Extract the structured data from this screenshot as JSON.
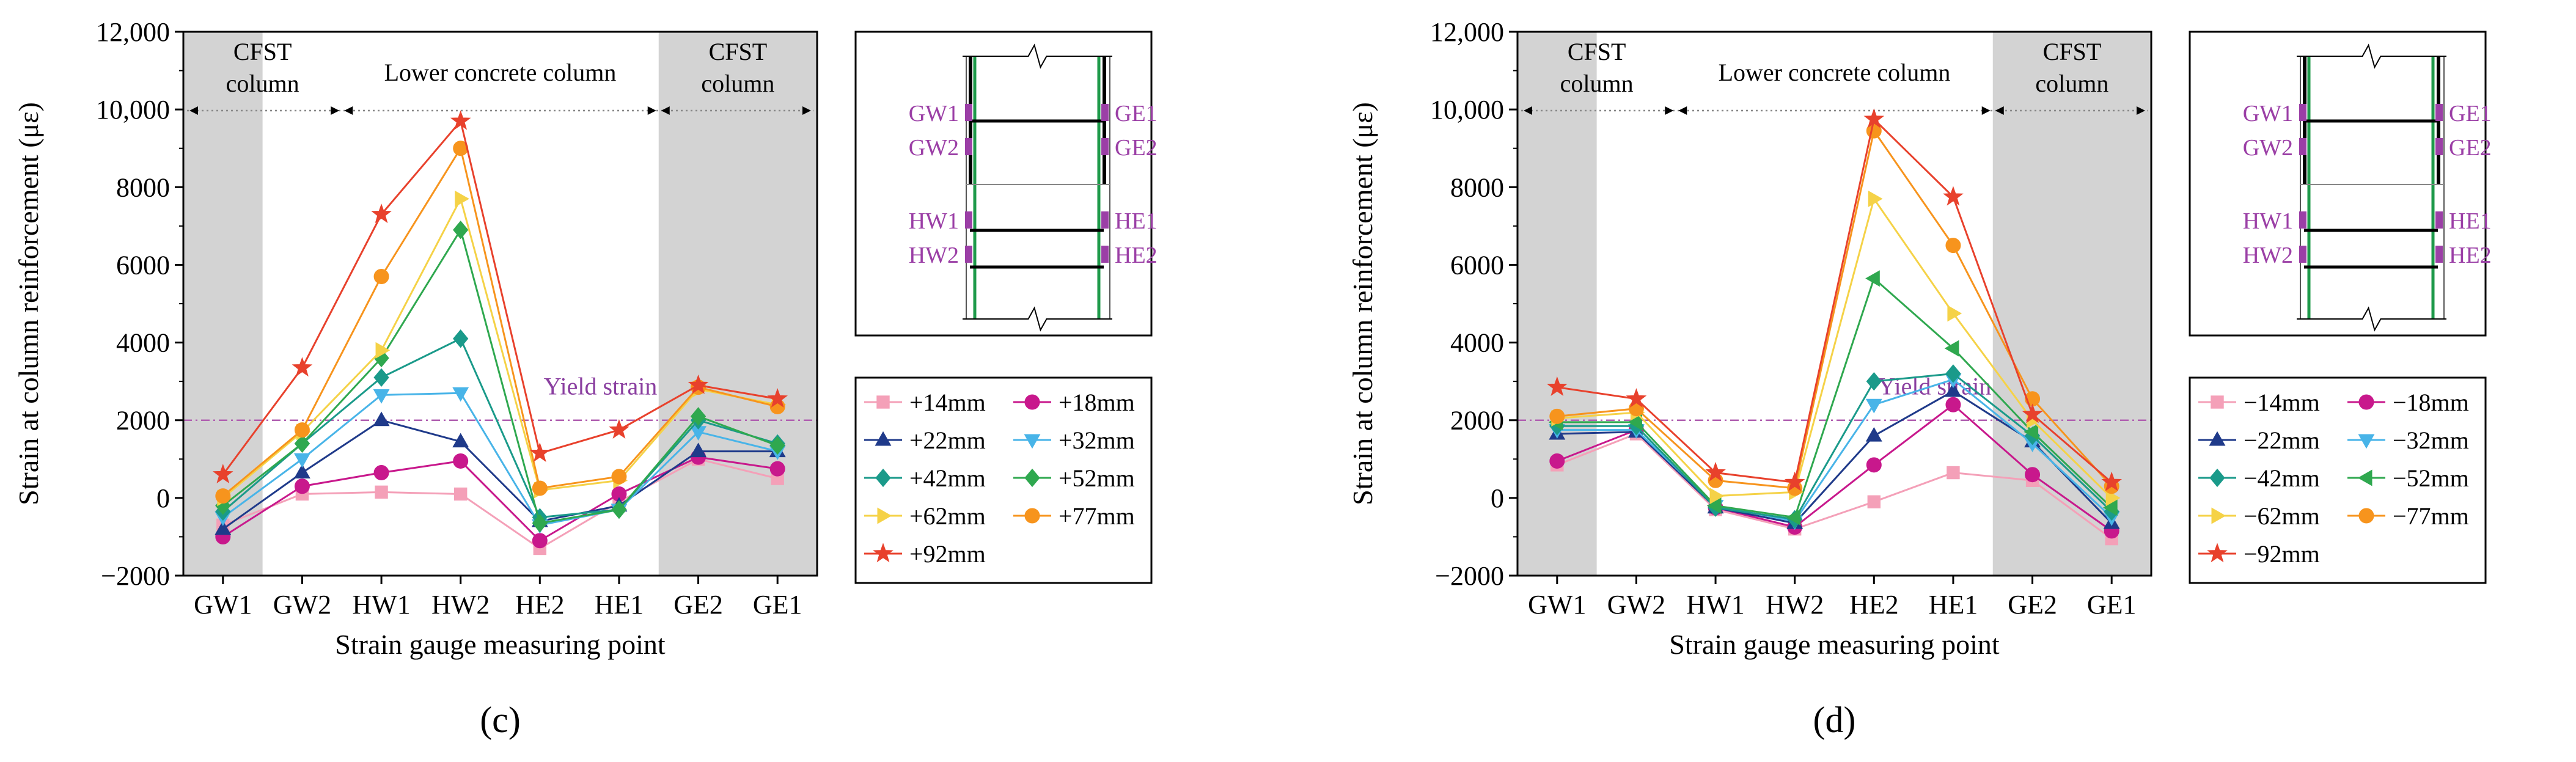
{
  "colors": {
    "shade": "#d3d3d3",
    "yield_line": "#b060b0",
    "yield_text": "#8a3fa0",
    "gauge": "#9b3fa6",
    "rebar": "#1e9a4a",
    "frame": "#000000"
  },
  "chart_data": [
    {
      "type": "line",
      "caption": "(c)",
      "xlabel": "Strain gauge measuring point",
      "ylabel": "Strain at column reinforcement (με)",
      "categories": [
        "GW1",
        "GW2",
        "HW1",
        "HW2",
        "HE2",
        "HE1",
        "GE2",
        "GE1"
      ],
      "ylim": [
        -2000,
        12000
      ],
      "yticks": [
        -2000,
        0,
        2000,
        4000,
        6000,
        8000,
        10000,
        12000
      ],
      "ytick_labels": [
        "−2000",
        "0",
        "2000",
        "4000",
        "6000",
        "8000",
        "10,000",
        "12,000"
      ],
      "region_labels": {
        "cfst_left": "CFST column",
        "middle": "Lower concrete column",
        "cfst_right": "CFST column"
      },
      "yield_label": "Yield strain",
      "yield_value": 2000,
      "legend_columns": 2,
      "series": [
        {
          "name": "+14mm",
          "color": "#f4a0b8",
          "marker": "square",
          "values": [
            -700,
            100,
            150,
            100,
            -1300,
            -100,
            1000,
            500
          ]
        },
        {
          "name": "+18mm",
          "color": "#c8188c",
          "marker": "circle",
          "values": [
            -1000,
            300,
            650,
            950,
            -1100,
            100,
            1050,
            750
          ]
        },
        {
          "name": "+22mm",
          "color": "#1f3a8a",
          "marker": "triangle-up",
          "values": [
            -800,
            650,
            2000,
            1450,
            -600,
            -200,
            1200,
            1200
          ]
        },
        {
          "name": "+32mm",
          "color": "#48b4e8",
          "marker": "triangle-down",
          "values": [
            -500,
            1000,
            2650,
            2700,
            -700,
            -300,
            1700,
            1200
          ]
        },
        {
          "name": "+42mm",
          "color": "#1a9a8a",
          "marker": "diamond",
          "values": [
            -350,
            1400,
            3100,
            4100,
            -500,
            -300,
            2000,
            1400
          ]
        },
        {
          "name": "+52mm",
          "color": "#2fa84f",
          "marker": "diamond",
          "values": [
            -200,
            1400,
            3600,
            6900,
            -650,
            -300,
            2100,
            1350
          ]
        },
        {
          "name": "+62mm",
          "color": "#f5d247",
          "marker": "triangle-right",
          "values": [
            0,
            1700,
            3800,
            7700,
            200,
            450,
            2800,
            2400
          ]
        },
        {
          "name": "+77mm",
          "color": "#f7941d",
          "marker": "circle",
          "values": [
            50,
            1750,
            5700,
            9000,
            250,
            550,
            2850,
            2350
          ]
        },
        {
          "name": "+92mm",
          "color": "#e8412c",
          "marker": "star",
          "values": [
            600,
            3350,
            7300,
            9700,
            1150,
            1750,
            2900,
            2550
          ]
        }
      ],
      "inset": {
        "top_left": [
          "GW1",
          "GW2"
        ],
        "top_right": [
          "GE1",
          "GE2"
        ],
        "bottom_left": [
          "HW1",
          "HW2"
        ],
        "bottom_right": [
          "HE1",
          "HE2"
        ]
      }
    },
    {
      "type": "line",
      "caption": "(d)",
      "xlabel": "Strain gauge measuring point",
      "ylabel": "Strain at column reinforcement (με)",
      "categories": [
        "GW1",
        "GW2",
        "HW1",
        "HW2",
        "HE2",
        "HE1",
        "GE2",
        "GE1"
      ],
      "ylim": [
        -2000,
        12000
      ],
      "yticks": [
        -2000,
        0,
        2000,
        4000,
        6000,
        8000,
        10000,
        12000
      ],
      "ytick_labels": [
        "−2000",
        "0",
        "2000",
        "4000",
        "6000",
        "8000",
        "10,000",
        "12,000"
      ],
      "region_labels": {
        "cfst_left": "CFST column",
        "middle": "Lower concrete column",
        "cfst_right": "CFST column"
      },
      "yield_label": "Yield strain",
      "yield_value": 2000,
      "legend_columns": 2,
      "series": [
        {
          "name": "−14mm",
          "color": "#f4a0b8",
          "marker": "square",
          "values": [
            850,
            1650,
            -300,
            -800,
            -100,
            650,
            450,
            -1050
          ]
        },
        {
          "name": "−18mm",
          "color": "#c8188c",
          "marker": "circle",
          "values": [
            950,
            1750,
            -250,
            -750,
            850,
            2400,
            600,
            -850
          ]
        },
        {
          "name": "−22mm",
          "color": "#1f3a8a",
          "marker": "triangle-up",
          "values": [
            1650,
            1700,
            -250,
            -650,
            1600,
            2750,
            1450,
            -650
          ]
        },
        {
          "name": "−32mm",
          "color": "#48b4e8",
          "marker": "triangle-down",
          "values": [
            1750,
            1750,
            -200,
            -600,
            2400,
            3050,
            1400,
            -500
          ]
        },
        {
          "name": "−42mm",
          "color": "#1a9a8a",
          "marker": "diamond",
          "values": [
            1850,
            1850,
            -250,
            -550,
            3000,
            3200,
            1600,
            -350
          ]
        },
        {
          "name": "−52mm",
          "color": "#2fa84f",
          "marker": "triangle-left",
          "values": [
            1950,
            1950,
            -200,
            -500,
            5650,
            3850,
            1700,
            -250
          ]
        },
        {
          "name": "−62mm",
          "color": "#f5d247",
          "marker": "triangle-right",
          "values": [
            2050,
            2200,
            50,
            150,
            7700,
            4750,
            2000,
            0
          ]
        },
        {
          "name": "−77mm",
          "color": "#f7941d",
          "marker": "circle",
          "values": [
            2100,
            2300,
            450,
            250,
            9450,
            6500,
            2550,
            300
          ]
        },
        {
          "name": "−92mm",
          "color": "#e8412c",
          "marker": "star",
          "values": [
            2850,
            2550,
            650,
            400,
            9750,
            7750,
            2150,
            400
          ]
        }
      ],
      "inset": {
        "top_left": [
          "GW1",
          "GW2"
        ],
        "top_right": [
          "GE1",
          "GE2"
        ],
        "bottom_left": [
          "HW1",
          "HW2"
        ],
        "bottom_right": [
          "HE1",
          "HE2"
        ]
      }
    }
  ]
}
